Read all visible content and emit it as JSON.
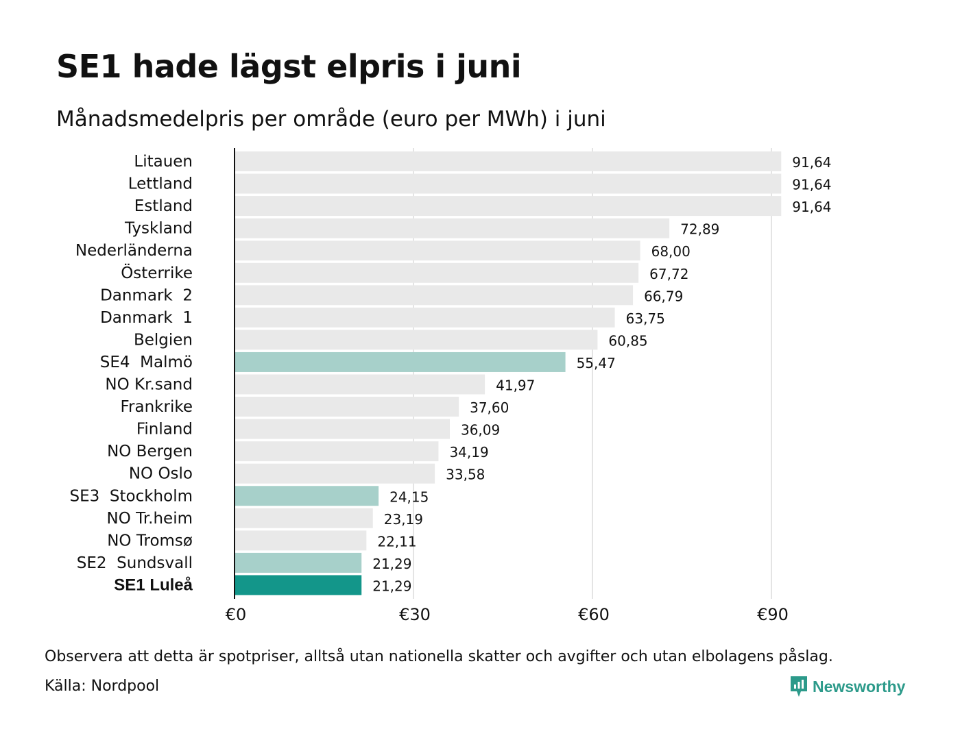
{
  "header": {
    "title": "SE1 hade lägst elpris i juni",
    "subtitle": "Månadsmedelpris per område (euro per MWh) i juni"
  },
  "footer": {
    "note": "Observera att detta är spotpriser, alltså utan nationella skatter och avgifter och utan elbolagens påslag.",
    "source": "Källa: Nordpool",
    "brand": "Newsworthy"
  },
  "colors": {
    "bar_default": "#e9e9e9",
    "bar_sweden": "#a7d0ca",
    "bar_highlight": "#13968a",
    "gridline": "#c8c8c8",
    "axis": "#111111",
    "brand": "#2c9a8a"
  },
  "chart_data": {
    "type": "bar",
    "orientation": "horizontal",
    "title": "SE1 hade lägst elpris i juni",
    "subtitle": "Månadsmedelpris per område (euro per MWh) i juni",
    "xlabel": "",
    "ylabel": "",
    "xlim": [
      0,
      100
    ],
    "grid": true,
    "xticks": [
      0,
      30,
      60,
      90
    ],
    "xtick_labels": [
      "€0",
      "€30",
      "€60",
      "€90"
    ],
    "categories": [
      "Litauen",
      "Lettland",
      "Estland",
      "Tyskland",
      "Nederländerna",
      "Österrike",
      "Danmark  2",
      "Danmark  1",
      "Belgien",
      "SE4  Malmö",
      "NO Kr.sand",
      "Frankrike",
      "Finland",
      "NO Bergen",
      "NO Oslo",
      "SE3  Stockholm",
      "NO Tr.heim",
      "NO Tromsø",
      "SE2  Sundsvall",
      "SE1 Luleå"
    ],
    "values": [
      91.64,
      91.64,
      91.64,
      72.89,
      68.0,
      67.72,
      66.79,
      63.75,
      60.85,
      55.47,
      41.97,
      37.6,
      36.09,
      34.19,
      33.58,
      24.15,
      23.19,
      22.11,
      21.29,
      21.29
    ],
    "value_labels": [
      "91,64",
      "91,64",
      "91,64",
      "72,89",
      "68,00",
      "67,72",
      "66,79",
      "63,75",
      "60,85",
      "55,47",
      "41,97",
      "37,60",
      "36,09",
      "34,19",
      "33,58",
      "24,15",
      "23,19",
      "22,11",
      "21,29",
      "21,29"
    ],
    "highlight": [
      "none",
      "none",
      "none",
      "none",
      "none",
      "none",
      "none",
      "none",
      "none",
      "sweden",
      "none",
      "none",
      "none",
      "none",
      "none",
      "sweden",
      "none",
      "none",
      "sweden",
      "primary"
    ]
  }
}
